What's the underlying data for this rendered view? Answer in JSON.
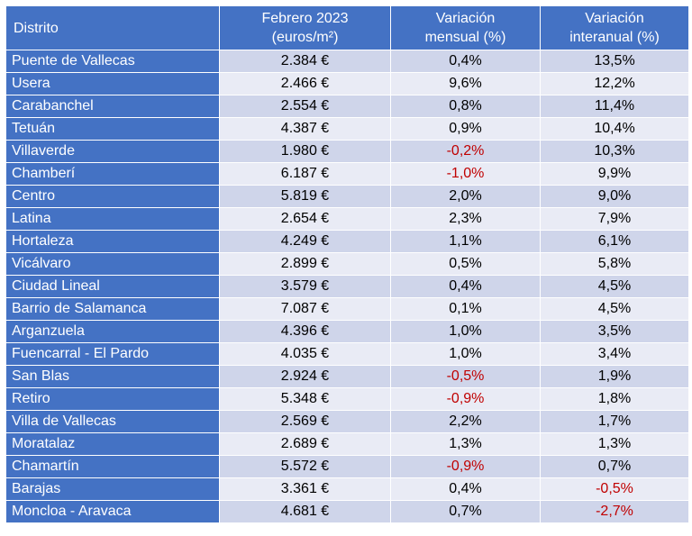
{
  "headers": {
    "district": "Distrito",
    "price_line1": "Febrero 2023",
    "price_line2": "(euros/m²)",
    "monthly_line1": "Variación",
    "monthly_line2": "mensual (%)",
    "annual_line1": "Variación",
    "annual_line2": "interanual (%)"
  },
  "colors": {
    "header_bg": "#4472c4",
    "row_odd": "#cfd5ea",
    "row_even": "#e9ebf5",
    "negative": "#c00000"
  },
  "rows": [
    {
      "district": "Puente de Vallecas",
      "price": "2.384 €",
      "monthly": "0,4%",
      "annual": "13,5%"
    },
    {
      "district": "Usera",
      "price": "2.466 €",
      "monthly": "9,6%",
      "annual": "12,2%"
    },
    {
      "district": "Carabanchel",
      "price": "2.554 €",
      "monthly": "0,8%",
      "annual": "11,4%"
    },
    {
      "district": "Tetuán",
      "price": "4.387 €",
      "monthly": "0,9%",
      "annual": "10,4%"
    },
    {
      "district": "Villaverde",
      "price": "1.980 €",
      "monthly": "-0,2%",
      "annual": "10,3%"
    },
    {
      "district": "Chamberí",
      "price": "6.187 €",
      "monthly": "-1,0%",
      "annual": "9,9%"
    },
    {
      "district": "Centro",
      "price": "5.819 €",
      "monthly": "2,0%",
      "annual": "9,0%"
    },
    {
      "district": "Latina",
      "price": "2.654 €",
      "monthly": "2,3%",
      "annual": "7,9%"
    },
    {
      "district": "Hortaleza",
      "price": "4.249 €",
      "monthly": "1,1%",
      "annual": "6,1%"
    },
    {
      "district": "Vicálvaro",
      "price": "2.899 €",
      "monthly": "0,5%",
      "annual": "5,8%"
    },
    {
      "district": "Ciudad Lineal",
      "price": "3.579 €",
      "monthly": "0,4%",
      "annual": "4,5%"
    },
    {
      "district": "Barrio de Salamanca",
      "price": "7.087 €",
      "monthly": "0,1%",
      "annual": "4,5%"
    },
    {
      "district": "Arganzuela",
      "price": "4.396 €",
      "monthly": "1,0%",
      "annual": "3,5%"
    },
    {
      "district": "Fuencarral - El Pardo",
      "price": "4.035 €",
      "monthly": "1,0%",
      "annual": "3,4%"
    },
    {
      "district": "San Blas",
      "price": "2.924 €",
      "monthly": "-0,5%",
      "annual": "1,9%"
    },
    {
      "district": "Retiro",
      "price": "5.348 €",
      "monthly": "-0,9%",
      "annual": "1,8%"
    },
    {
      "district": "Villa de Vallecas",
      "price": "2.569 €",
      "monthly": "2,2%",
      "annual": "1,7%"
    },
    {
      "district": "Moratalaz",
      "price": "2.689 €",
      "monthly": "1,3%",
      "annual": "1,3%"
    },
    {
      "district": "Chamartín",
      "price": "5.572 €",
      "monthly": "-0,9%",
      "annual": "0,7%"
    },
    {
      "district": "Barajas",
      "price": "3.361 €",
      "monthly": "0,4%",
      "annual": "-0,5%"
    },
    {
      "district": "Moncloa - Aravaca",
      "price": "4.681 €",
      "monthly": "0,7%",
      "annual": "-2,7%"
    }
  ]
}
